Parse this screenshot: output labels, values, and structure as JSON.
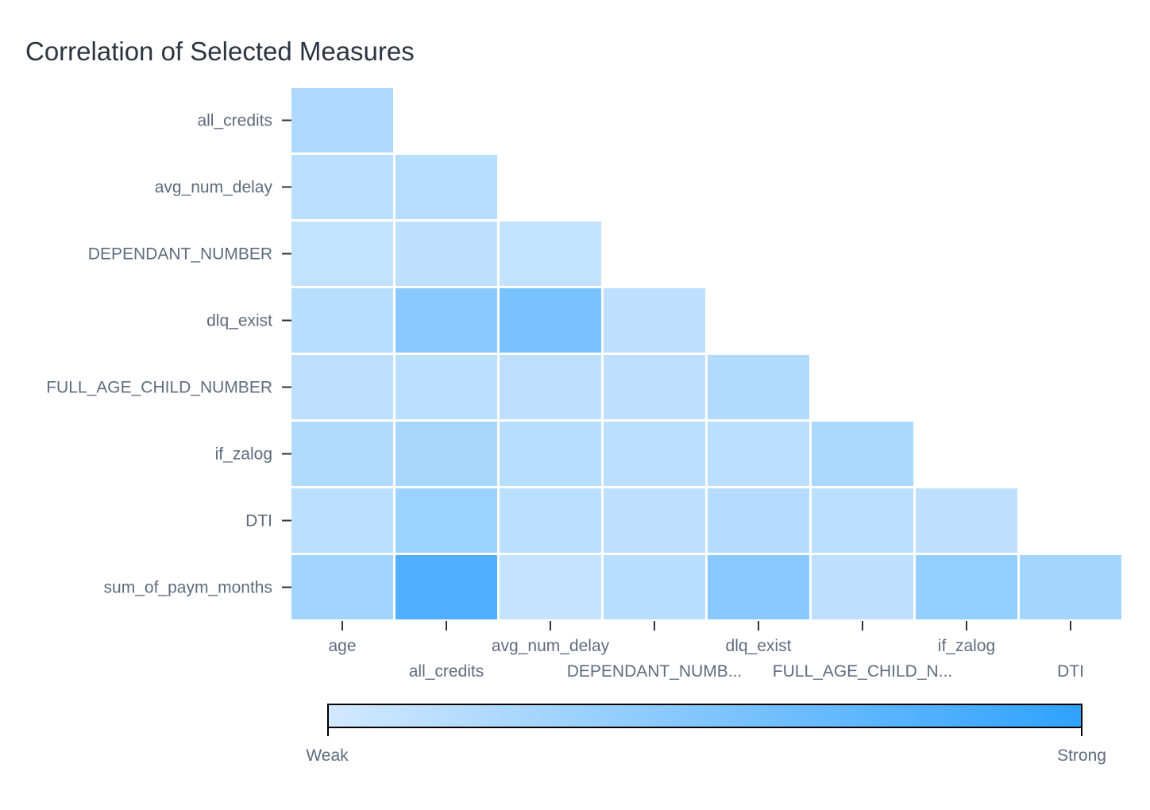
{
  "chart_data": {
    "type": "heatmap",
    "title": "Correlation of Selected Measures",
    "x_categories": [
      "age",
      "all_credits",
      "avg_num_delay",
      "DEPENDANT_NUMB...",
      "dlq_exist",
      "FULL_AGE_CHILD_N...",
      "if_zalog",
      "DTI"
    ],
    "y_categories": [
      "all_credits",
      "avg_num_delay",
      "DEPENDANT_NUMBER",
      "dlq_exist",
      "FULL_AGE_CHILD_NUMBER",
      "if_zalog",
      "DTI",
      "sum_of_paym_months"
    ],
    "values": [
      [
        0.22
      ],
      [
        0.14,
        0.16
      ],
      [
        0.1,
        0.12,
        0.1
      ],
      [
        0.16,
        0.45,
        0.55,
        0.12
      ],
      [
        0.12,
        0.14,
        0.12,
        0.12,
        0.2
      ],
      [
        0.2,
        0.26,
        0.16,
        0.14,
        0.14,
        0.24
      ],
      [
        0.14,
        0.33,
        0.14,
        0.12,
        0.18,
        0.14,
        0.12
      ],
      [
        0.3,
        0.8,
        0.08,
        0.16,
        0.45,
        0.12,
        0.38,
        0.28
      ]
    ],
    "legend": {
      "min_label": "Weak",
      "max_label": "Strong",
      "min_color": "#d2e9fe",
      "max_color": "#2fa2ff"
    }
  }
}
